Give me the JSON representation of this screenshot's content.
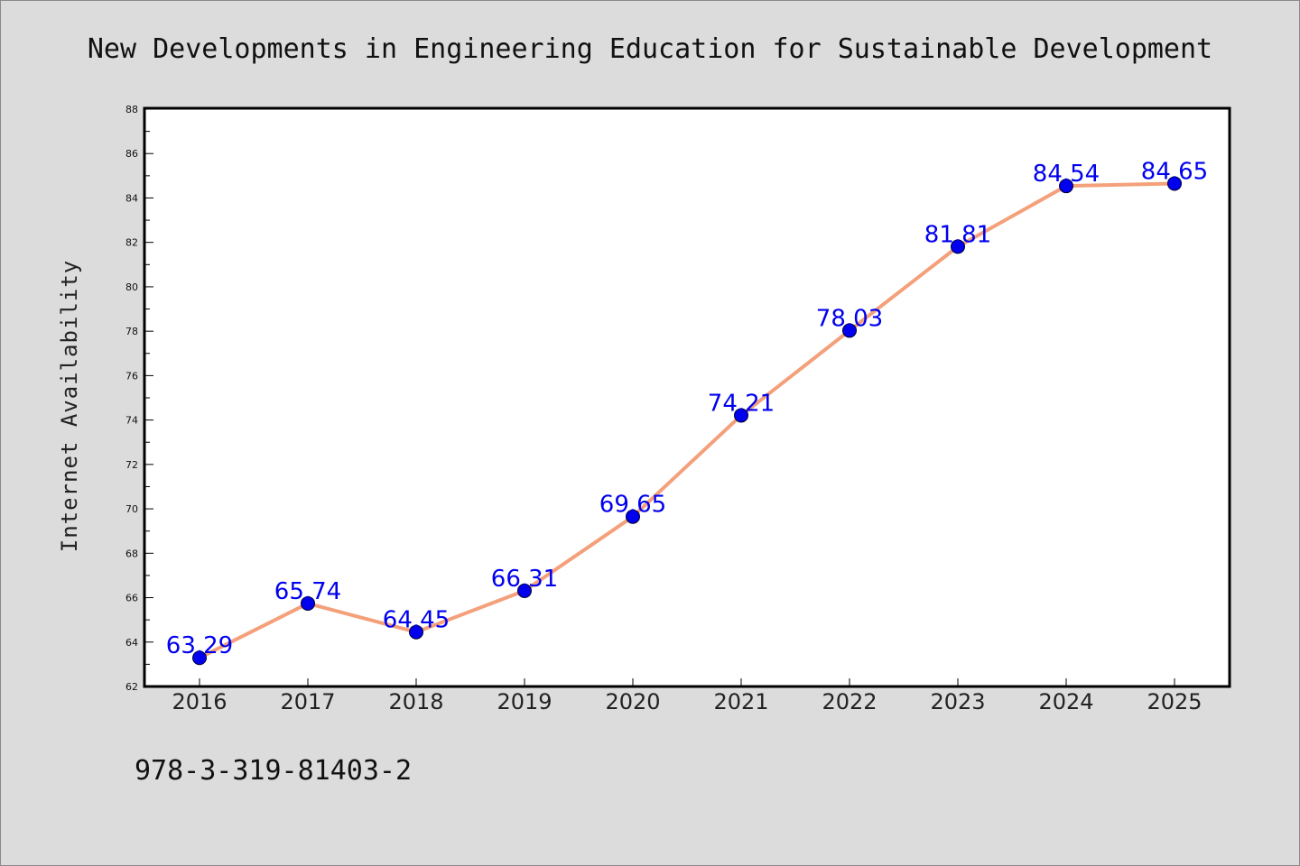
{
  "chart_data": {
    "type": "line",
    "title": "New Developments in Engineering Education for Sustainable Development",
    "xlabel": "",
    "ylabel": "Internet Availability",
    "categories": [
      "2016",
      "2017",
      "2018",
      "2019",
      "2020",
      "2021",
      "2022",
      "2023",
      "2024",
      "2025"
    ],
    "series": [
      {
        "values": [
          63.29,
          65.74,
          64.45,
          66.31,
          69.65,
          74.21,
          78.03,
          81.81,
          84.54,
          84.65
        ],
        "line_color": "#f4a07a",
        "marker_color": "#0000ee"
      }
    ],
    "data_labels": [
      "63.29",
      "65.74",
      "64.45",
      "66.31",
      "69.65",
      "74.21",
      "78.03",
      "81.81",
      "84.54",
      "84.65"
    ],
    "ylim": [
      62,
      88
    ],
    "yticks": [
      "62",
      "64",
      "66",
      "68",
      "70",
      "72",
      "74",
      "76",
      "78",
      "80",
      "82",
      "84",
      "86",
      "88"
    ],
    "grid": false,
    "legend": "none"
  },
  "footer": {
    "isbn": "978-3-319-81403-2"
  },
  "colors": {
    "background": "#dcdcdc",
    "plot_background": "#ffffff",
    "line": "#f4a07a",
    "marker": "#0000ee",
    "data_label": "#0000ee"
  }
}
